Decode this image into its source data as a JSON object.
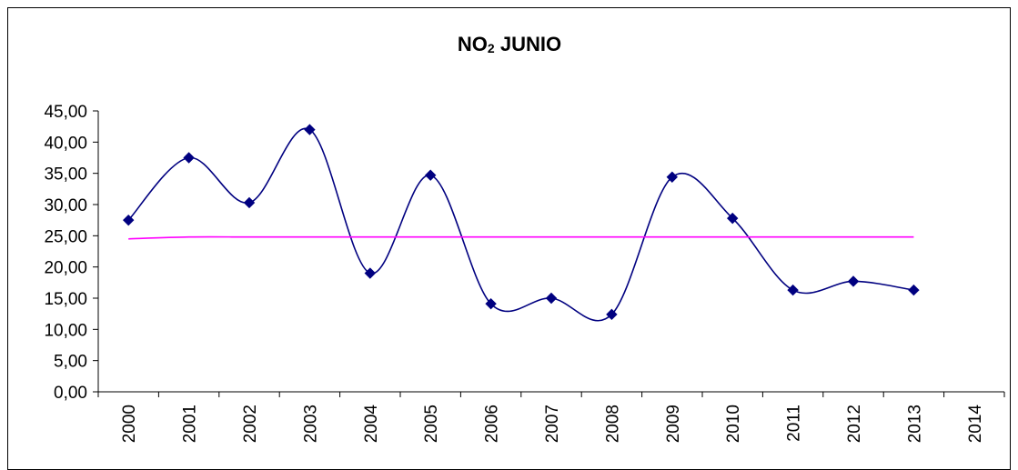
{
  "chart_data": {
    "type": "line",
    "title": {
      "main": "NO",
      "subscript": "2",
      "rest": " JUNIO"
    },
    "xlabel": "",
    "ylabel": "",
    "categories": [
      "2000",
      "2001",
      "2002",
      "2003",
      "2004",
      "2005",
      "2006",
      "2007",
      "2008",
      "2009",
      "2010",
      "2011",
      "2012",
      "2013",
      "2014"
    ],
    "y_tick_labels": [
      "0,00",
      "5,00",
      "10,00",
      "15,00",
      "20,00",
      "25,00",
      "30,00",
      "35,00",
      "40,00",
      "45,00"
    ],
    "ylim": [
      0,
      45
    ],
    "ytick_step": 5,
    "grid": false,
    "legend": "none",
    "series": [
      {
        "values": [
          27.5,
          37.5,
          30.3,
          42.0,
          19.0,
          34.7,
          14.1,
          15.0,
          12.4,
          34.4,
          27.8,
          16.3,
          17.7,
          16.3,
          null
        ],
        "smooth": true,
        "marker": "diamond",
        "color": "#000080"
      },
      {
        "values": [
          24.5,
          24.8,
          24.8,
          24.8,
          24.8,
          24.8,
          24.8,
          24.8,
          24.8,
          24.8,
          24.8,
          24.8,
          24.8,
          24.8,
          null
        ],
        "smooth": true,
        "marker": "none",
        "color": "#ff00ff"
      }
    ]
  }
}
